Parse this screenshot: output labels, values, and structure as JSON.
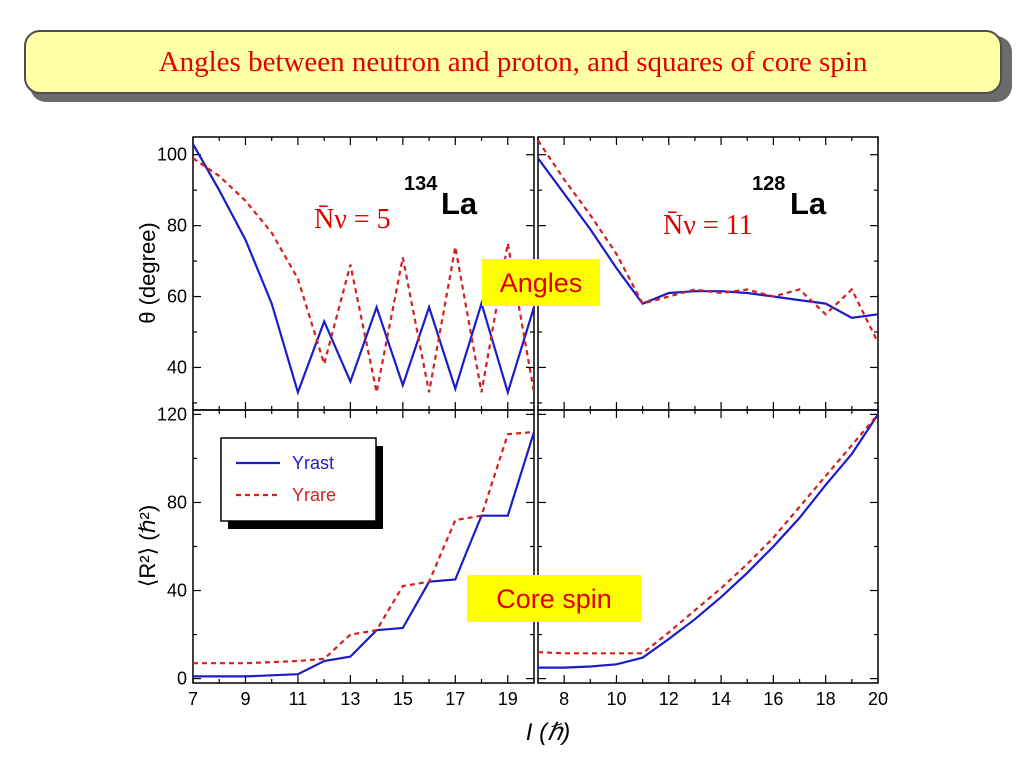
{
  "slide": {
    "title": "Angles between neutron and proton, and squares of core spin",
    "title_color": "#e00000",
    "title_bg": "#ffffa6"
  },
  "labels": {
    "angles_label": "Angles",
    "core_spin_label": "Core spin",
    "label_bg": "#ffff00",
    "top_left_nucleus_mass": "134",
    "top_left_nucleus_symbol": "La",
    "top_left_nv": "N̄ν = 5",
    "top_right_nucleus_mass": "128",
    "top_right_nucleus_symbol": "La",
    "top_right_nv": "N̄ν = 11",
    "x_axis_label": "I (ℏ)",
    "top_y_axis_label": "θ (degree)",
    "bottom_y_axis_label": "⟨R²⟩ (ℏ²)"
  },
  "legend": {
    "yrast_label": "Yrast",
    "yrare_label": "Yrare"
  },
  "colors": {
    "yrast": "#1c1ccc",
    "yrare": "#d42020"
  },
  "chart_data": [
    {
      "type": "line",
      "panel": "top-left",
      "ylabel": "θ (degree)",
      "xlim": [
        7,
        20
      ],
      "ylim": [
        28,
        105
      ],
      "yticks": [
        40,
        60,
        80,
        100
      ],
      "series": [
        {
          "name": "Yrast",
          "style": "solid",
          "x": [
            7,
            8,
            9,
            10,
            11,
            12,
            13,
            14,
            15,
            16,
            17,
            18,
            19,
            20
          ],
          "y": [
            103,
            90,
            76,
            58,
            33,
            53,
            36,
            57,
            35,
            57,
            34,
            58,
            33,
            57
          ]
        },
        {
          "name": "Yrare",
          "style": "dashed",
          "x": [
            7,
            8,
            9,
            10,
            11,
            12,
            13,
            14,
            15,
            16,
            17,
            18,
            19,
            20
          ],
          "y": [
            99,
            94,
            87,
            78,
            65,
            41,
            69,
            33,
            71,
            33,
            74,
            33,
            75,
            33
          ]
        }
      ]
    },
    {
      "type": "line",
      "panel": "top-right",
      "xlim": [
        7,
        20
      ],
      "ylim": [
        28,
        105
      ],
      "series": [
        {
          "name": "Yrast",
          "style": "solid",
          "x": [
            7,
            8,
            9,
            10,
            11,
            12,
            13,
            14,
            15,
            16,
            17,
            18,
            19,
            20
          ],
          "y": [
            99,
            89,
            79,
            68,
            58,
            61,
            61.5,
            61.5,
            61,
            60,
            59,
            58,
            54,
            55
          ]
        },
        {
          "name": "Yrare",
          "style": "dashed",
          "x": [
            7,
            8,
            9,
            10,
            11,
            12,
            13,
            14,
            15,
            16,
            17,
            18,
            19,
            20
          ],
          "y": [
            104,
            93,
            83,
            72,
            58,
            60,
            62,
            61,
            62,
            60,
            62,
            55,
            62,
            47
          ]
        }
      ]
    },
    {
      "type": "line",
      "panel": "bottom-left",
      "ylabel": "⟨R²⟩ (ℏ²)",
      "xlabel": "I (ℏ)",
      "xlim": [
        7,
        20
      ],
      "ylim": [
        -2,
        122
      ],
      "xticks": [
        7,
        9,
        11,
        13,
        15,
        17,
        19
      ],
      "yticks": [
        0,
        40,
        80,
        120
      ],
      "series": [
        {
          "name": "Yrast",
          "style": "solid",
          "x": [
            7,
            8,
            9,
            10,
            11,
            12,
            13,
            14,
            15,
            16,
            17,
            18,
            19,
            20
          ],
          "y": [
            1,
            1,
            1,
            1.5,
            2,
            8,
            10,
            22,
            23,
            44,
            45,
            74,
            74,
            112
          ]
        },
        {
          "name": "Yrare",
          "style": "dashed",
          "x": [
            7,
            8,
            9,
            10,
            11,
            12,
            13,
            14,
            15,
            16,
            17,
            18,
            19,
            20
          ],
          "y": [
            7,
            7,
            7,
            7.5,
            8,
            9,
            20,
            22,
            42,
            44,
            72,
            74,
            111,
            112
          ]
        }
      ]
    },
    {
      "type": "line",
      "panel": "bottom-right",
      "xlabel": "I (ℏ)",
      "xlim": [
        7,
        20
      ],
      "ylim": [
        -2,
        122
      ],
      "xticks": [
        8,
        10,
        12,
        14,
        16,
        18,
        20
      ],
      "series": [
        {
          "name": "Yrast",
          "style": "solid",
          "x": [
            7,
            8,
            9,
            10,
            11,
            12,
            13,
            14,
            15,
            16,
            17,
            18,
            19,
            20
          ],
          "y": [
            5,
            5,
            5.5,
            6.5,
            9.5,
            18,
            27,
            37,
            48,
            60,
            73,
            88,
            102,
            120
          ]
        },
        {
          "name": "Yrare",
          "style": "dashed",
          "x": [
            7,
            8,
            9,
            10,
            11,
            12,
            13,
            14,
            15,
            16,
            17,
            18,
            19,
            20
          ],
          "y": [
            12,
            11.5,
            11.5,
            11.5,
            11.5,
            21,
            31,
            41,
            52,
            64,
            78,
            92,
            106,
            120
          ]
        }
      ]
    }
  ]
}
